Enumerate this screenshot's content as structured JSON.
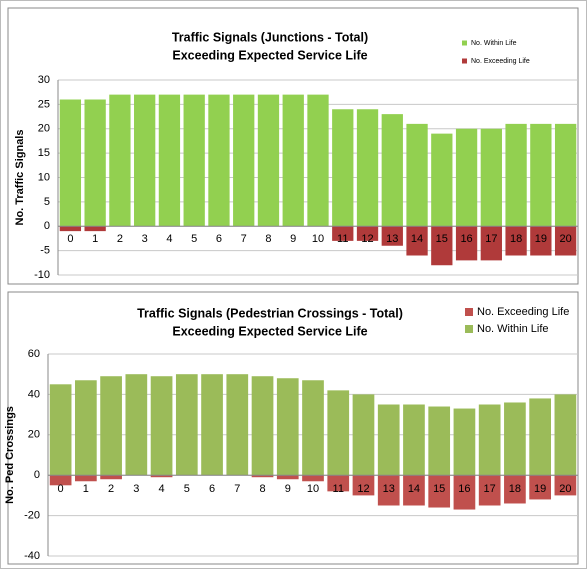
{
  "chart_data": [
    {
      "type": "bar",
      "title": [
        "Traffic Signals (Junctions -  Total)",
        "Exceeding Expected Service Life"
      ],
      "y_label": "No. Traffic Signals",
      "categories": [
        "0",
        "1",
        "2",
        "3",
        "4",
        "5",
        "6",
        "7",
        "8",
        "9",
        "10",
        "11",
        "12",
        "13",
        "14",
        "15",
        "16",
        "17",
        "18",
        "19",
        "20"
      ],
      "series": [
        {
          "name": "No. Within Life",
          "color": "#92d050",
          "values": [
            26,
            26,
            27,
            27,
            27,
            27,
            27,
            27,
            27,
            27,
            27,
            24,
            24,
            23,
            21,
            19,
            20,
            20,
            21,
            21,
            21
          ]
        },
        {
          "name": "No. Exceeding Life",
          "color": "#b03a3a",
          "values": [
            -1,
            -1,
            0,
            0,
            0,
            0,
            0,
            0,
            0,
            0,
            0,
            -3,
            -3,
            -4,
            -6,
            -8,
            -7,
            -7,
            -6,
            -6,
            -6
          ]
        }
      ],
      "ylim": [
        -10,
        30
      ],
      "yticks": [
        -10,
        -5,
        0,
        5,
        10,
        15,
        20,
        25,
        30
      ],
      "grid": true,
      "legend": "top-right"
    },
    {
      "type": "bar",
      "title": [
        "Traffic Signals (Pedestrian Crossings - Total)",
        "Exceeding Expected Service Life"
      ],
      "y_label": "No. Ped Crossings",
      "categories": [
        "0",
        "1",
        "2",
        "3",
        "4",
        "5",
        "6",
        "7",
        "8",
        "9",
        "10",
        "11",
        "12",
        "13",
        "14",
        "15",
        "16",
        "17",
        "18",
        "19",
        "20"
      ],
      "series": [
        {
          "name": "No. Exceeding Life",
          "color": "#c0504d",
          "values": [
            -5,
            -3,
            -2,
            0,
            -1,
            0,
            0,
            0,
            -1,
            -2,
            -3,
            -8,
            -10,
            -15,
            -15,
            -16,
            -17,
            -15,
            -14,
            -12,
            -10
          ]
        },
        {
          "name": "No. Within Life",
          "color": "#9bbb59",
          "values": [
            45,
            47,
            49,
            50,
            49,
            50,
            50,
            50,
            49,
            48,
            47,
            42,
            40,
            35,
            35,
            34,
            33,
            35,
            36,
            38,
            40
          ]
        }
      ],
      "ylim": [
        -40,
        60
      ],
      "yticks": [
        -40,
        -20,
        0,
        20,
        40,
        60
      ],
      "grid": true,
      "legend": "top-right"
    }
  ]
}
